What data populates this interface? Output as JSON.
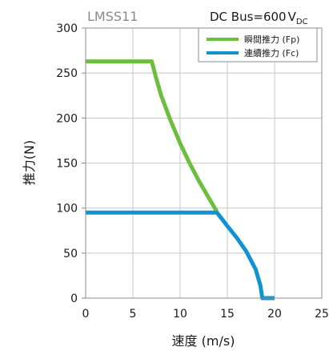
{
  "chart_data": {
    "type": "line",
    "model_label": "LMSS11",
    "bus_label": "DC Bus=600",
    "bus_unit": "V",
    "bus_unit_subscript": "DC",
    "xlabel": "速度 (m/s)",
    "ylabel": "推力(N)",
    "xlim": [
      0,
      25
    ],
    "ylim": [
      0,
      300
    ],
    "x_ticks": [
      "0",
      "5",
      "10",
      "15",
      "20",
      "25"
    ],
    "y_ticks": [
      "0",
      "50",
      "100",
      "150",
      "200",
      "250",
      "300"
    ],
    "grid": true,
    "legend_position": "top-right",
    "series": [
      {
        "name": "瞬間推力 (Fp)",
        "color": "#6cbf3e",
        "points": [
          [
            0,
            263
          ],
          [
            7.0,
            263
          ],
          [
            7.5,
            243
          ],
          [
            8.0,
            225
          ],
          [
            9.0,
            197
          ],
          [
            10.0,
            172
          ],
          [
            11.0,
            150
          ],
          [
            12.0,
            130
          ],
          [
            13.0,
            112
          ],
          [
            13.9,
            96
          ]
        ]
      },
      {
        "name": "連續推力 (Fc)",
        "color": "#1193d2",
        "points": [
          [
            0,
            95
          ],
          [
            13.9,
            95
          ],
          [
            14.5,
            87
          ],
          [
            15.0,
            80
          ],
          [
            16.0,
            67
          ],
          [
            17.0,
            52
          ],
          [
            18.0,
            32
          ],
          [
            18.5,
            14
          ],
          [
            18.7,
            0
          ],
          [
            20.0,
            0
          ]
        ]
      }
    ]
  }
}
